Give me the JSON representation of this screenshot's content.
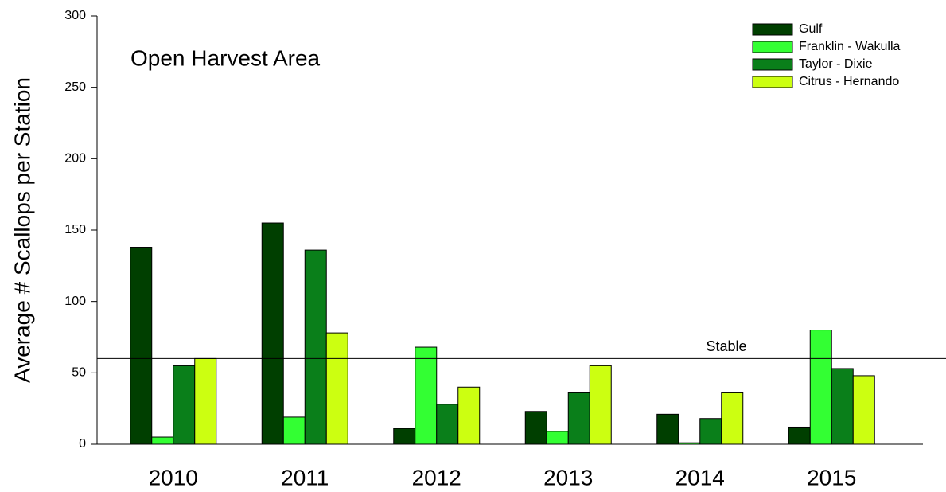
{
  "chart_data": {
    "type": "bar",
    "annotation": "Open Harvest Area",
    "y_label": "Average # Scallops per Station",
    "categories": [
      "2010",
      "2011",
      "2012",
      "2013",
      "2014",
      "2015"
    ],
    "series": [
      {
        "name": "Gulf",
        "color": "#003f00",
        "values": [
          138,
          155,
          11,
          23,
          21,
          12
        ]
      },
      {
        "name": "Franklin - Wakulla",
        "color": "#33ff33",
        "values": [
          5,
          19,
          68,
          9,
          1,
          80
        ]
      },
      {
        "name": "Taylor - Dixie",
        "color": "#0a7f1a",
        "values": [
          55,
          136,
          28,
          36,
          18,
          53
        ]
      },
      {
        "name": "Citrus - Hernando",
        "color": "#ccff11",
        "values": [
          60,
          78,
          40,
          55,
          36,
          48
        ]
      }
    ],
    "reference_line": {
      "value": 60,
      "label": "Stable"
    },
    "ylim": [
      0,
      300
    ],
    "yticks": [
      0,
      50,
      100,
      150,
      200,
      250,
      300
    ],
    "legend": "top-right"
  }
}
